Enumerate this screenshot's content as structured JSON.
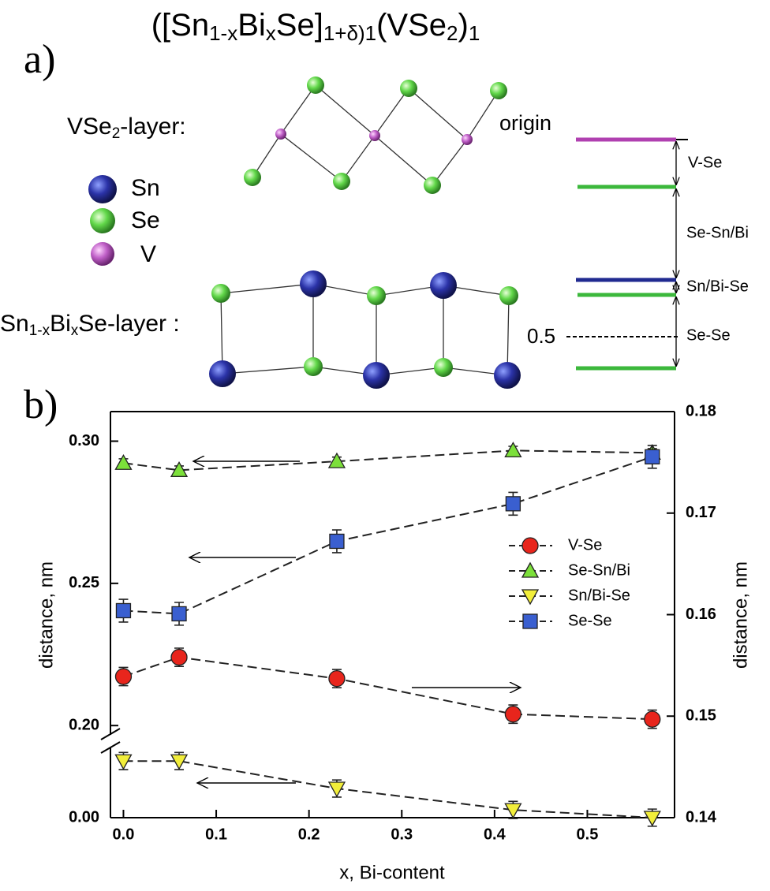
{
  "diagram": {
    "title": [
      "([Sn",
      "1-x",
      "Bi",
      "x",
      "Se]",
      "1+δ)",
      "1",
      "(VSe",
      "2",
      ")",
      "1"
    ],
    "panel_a": "a)",
    "vse2_label": [
      "VSe",
      "2",
      "-layer:"
    ],
    "legend": [
      "Sn",
      "Se",
      "V"
    ],
    "snse_label": [
      "Sn",
      "1-x",
      "Bi",
      "x",
      "Se-layer :"
    ],
    "origin": "origin",
    "levels": [
      "V-Se",
      "Se-Sn/Bi",
      "Sn/Bi-Se",
      "Se-Se"
    ],
    "half": "0.5"
  },
  "chart_data": {
    "type": "line",
    "panel": "b)",
    "xlabel": "x, Bi-content",
    "ylabel": "distance, nm",
    "y2label": "distance, nm",
    "x": [
      0.0,
      0.06,
      0.23,
      0.42,
      0.57
    ],
    "xlim": [
      -0.014,
      0.594
    ],
    "xticks": [
      {
        "value": 0,
        "label": "0.0"
      },
      0.1,
      0.2,
      0.3,
      0.4,
      0.5
    ],
    "ylim": [
      0.197,
      0.3104
    ],
    "ylim_lower": [
      0,
      0.024
    ],
    "yticks": [
      {
        "value": 0.3,
        "label": "0.30"
      },
      0.25,
      {
        "value": 0.2,
        "label": "0.20"
      },
      {
        "value": 0,
        "label": "0.00"
      }
    ],
    "y2lim": [
      0.14,
      0.18
    ],
    "y2ticks": [
      0.14,
      0.15,
      0.16,
      0.17,
      0.18
    ],
    "series": [
      {
        "name": "V-Se",
        "color": "#e8251c",
        "marker": "circle",
        "axis": "y2",
        "values": [
          0.1539,
          0.1558,
          0.1537,
          0.1502,
          0.1497
        ],
        "errors": [
          0.0009,
          0.0009,
          0.0009,
          0.0009,
          0.0009
        ]
      },
      {
        "name": "Se-Sn/Bi",
        "color": "#7ce03a",
        "marker": "triangle-up",
        "axis": "y",
        "values": [
          0.2923,
          0.2898,
          0.2929,
          0.2967,
          0.2959
        ],
        "errors": [
          0.0015,
          0.0015,
          0.0015,
          0.0015,
          0.0015
        ]
      },
      {
        "name": "Sn/Bi-Se",
        "color": "#f2ee3a",
        "marker": "triangle-down",
        "axis": "y",
        "values": [
          0.0198,
          0.0198,
          0.0102,
          0.0027,
          0.0
        ],
        "errors": [
          0.003,
          0.003,
          0.003,
          0.003,
          0.003
        ]
      },
      {
        "name": "Se-Se",
        "color": "#3a5fd0",
        "marker": "square",
        "axis": "y",
        "values": [
          0.2404,
          0.2393,
          0.2648,
          0.278,
          0.2945
        ],
        "errors": [
          0.004,
          0.004,
          0.004,
          0.004,
          0.004
        ]
      }
    ]
  }
}
